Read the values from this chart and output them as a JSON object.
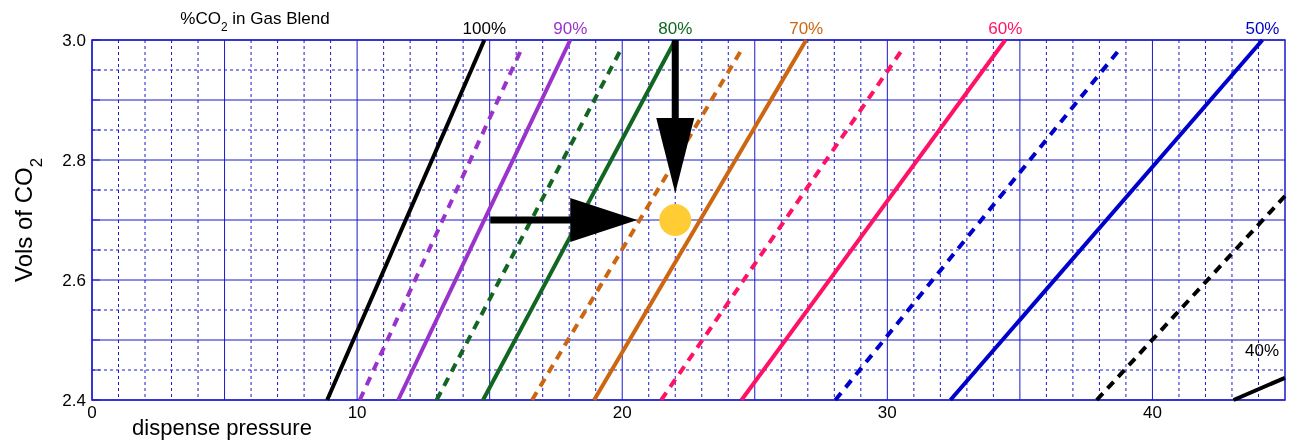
{
  "chart_data": {
    "type": "line",
    "title": "%CO$_{2}$ in Gas Blend",
    "xlabel": "dispense pressure",
    "ylabel": "Vols of CO$_{2}$",
    "xlim": [
      0,
      45
    ],
    "ylim": [
      2.4,
      3.0
    ],
    "xticks": [
      0,
      {
        "value": 1,
        "label": null
      },
      {
        "value": 2,
        "label": null
      },
      {
        "value": 3,
        "label": null
      },
      {
        "value": 4,
        "label": null
      },
      {
        "value": 5,
        "label": null
      },
      {
        "value": 6,
        "label": null
      },
      {
        "value": 7,
        "label": null
      },
      {
        "value": 8,
        "label": null
      },
      {
        "value": 9,
        "label": null
      },
      10,
      {
        "value": 11,
        "label": null
      },
      {
        "value": 12,
        "label": null
      },
      {
        "value": 13,
        "label": null
      },
      {
        "value": 14,
        "label": null
      },
      {
        "value": 15,
        "label": null
      },
      {
        "value": 16,
        "label": null
      },
      {
        "value": 17,
        "label": null
      },
      {
        "value": 18,
        "label": null
      },
      {
        "value": 19,
        "label": null
      },
      20,
      {
        "value": 21,
        "label": null
      },
      {
        "value": 22,
        "label": null
      },
      {
        "value": 23,
        "label": null
      },
      {
        "value": 24,
        "label": null
      },
      {
        "value": 25,
        "label": null
      },
      {
        "value": 26,
        "label": null
      },
      {
        "value": 27,
        "label": null
      },
      {
        "value": 28,
        "label": null
      },
      {
        "value": 29,
        "label": null
      },
      30,
      {
        "value": 31,
        "label": null
      },
      {
        "value": 32,
        "label": null
      },
      {
        "value": 33,
        "label": null
      },
      {
        "value": 34,
        "label": null
      },
      {
        "value": 35,
        "label": null
      },
      {
        "value": 36,
        "label": null
      },
      {
        "value": 37,
        "label": null
      },
      {
        "value": 38,
        "label": null
      },
      {
        "value": 39,
        "label": null
      },
      40,
      {
        "value": 41,
        "label": null
      },
      {
        "value": 42,
        "label": null
      },
      {
        "value": 43,
        "label": null
      },
      {
        "value": 44,
        "label": null
      }
    ],
    "yticks": [
      2.4,
      {
        "value": 2.45,
        "label": null
      },
      {
        "value": 2.5,
        "label": null
      },
      {
        "value": 2.55,
        "label": null
      },
      2.6,
      {
        "value": 2.65,
        "label": null
      },
      {
        "value": 2.7,
        "label": null
      },
      {
        "value": 2.75,
        "label": null
      },
      2.8,
      {
        "value": 2.85,
        "label": null
      },
      {
        "value": 2.9,
        "label": null
      },
      {
        "value": 2.95,
        "label": null
      },
      {
        "value": 3.0,
        "label": "3.0"
      }
    ],
    "grid": true,
    "series": [
      {
        "name": "100%",
        "color": "#000000",
        "x": [
          8.87,
          14.8
        ],
        "values": [
          2.4,
          3.0
        ]
      },
      {
        "color": "#9933cc",
        "line_style": "dashed",
        "x": [
          10.1,
          16.15
        ],
        "values": [
          2.4,
          2.98
        ]
      },
      {
        "name": "90%",
        "color": "#9933cc",
        "x": [
          11.55,
          18.04
        ],
        "values": [
          2.4,
          3.0
        ]
      },
      {
        "color": "#116622",
        "line_style": "dashed",
        "x": [
          13.0,
          19.9
        ],
        "values": [
          2.4,
          2.98
        ]
      },
      {
        "name": "80%",
        "color": "#116622",
        "x": [
          14.75,
          22.0
        ],
        "values": [
          2.4,
          3.0
        ]
      },
      {
        "color": "#cc6611",
        "line_style": "dashed",
        "x": [
          16.6,
          24.45
        ],
        "values": [
          2.4,
          2.98
        ]
      },
      {
        "name": "70%",
        "color": "#cc6611",
        "x": [
          18.94,
          26.94
        ],
        "values": [
          2.4,
          3.0
        ]
      },
      {
        "color": "#ff1166",
        "line_style": "dashed",
        "x": [
          21.47,
          30.5
        ],
        "values": [
          2.4,
          2.98
        ]
      },
      {
        "name": "60%",
        "color": "#ff1166",
        "x": [
          24.5,
          34.45
        ],
        "values": [
          2.4,
          3.0
        ]
      },
      {
        "color": "#0000cc",
        "line_style": "dashed",
        "x": [
          28.04,
          38.68
        ],
        "values": [
          2.4,
          2.98
        ]
      },
      {
        "name": "50%",
        "color": "#0000cc",
        "x": [
          32.38,
          44.15
        ],
        "values": [
          2.4,
          3.0
        ]
      },
      {
        "color": "#000000",
        "line_style": "dashed",
        "x": [
          37.9,
          45
        ],
        "values": [
          2.4,
          2.74
        ]
      },
      {
        "name": "40%",
        "color": "#000000",
        "x": [
          43.06,
          45
        ],
        "values": [
          2.4,
          2.437
        ]
      },
      {
        "type": "scatter",
        "marker": "circle",
        "color": "#ffcc33",
        "x": [
          22
        ],
        "values": [
          2.7
        ]
      }
    ]
  }
}
